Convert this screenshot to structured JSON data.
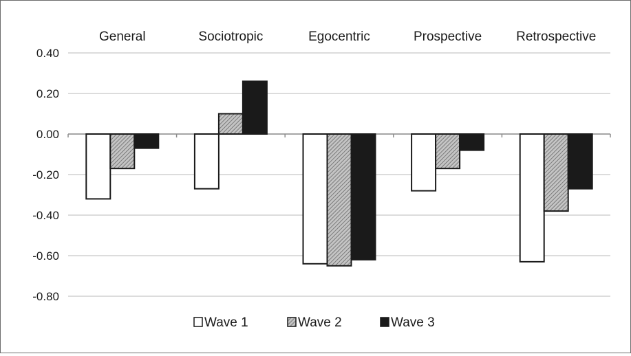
{
  "chart_data": {
    "type": "bar",
    "title": "",
    "xlabel": "",
    "ylabel": "",
    "categories": [
      "General",
      "Sociotropic",
      "Egocentric",
      "Prospective",
      "Retrospective"
    ],
    "series": [
      {
        "name": "Wave 1",
        "values": [
          -0.32,
          -0.27,
          -0.64,
          -0.28,
          -0.63
        ],
        "pattern": "white"
      },
      {
        "name": "Wave 2",
        "values": [
          -0.17,
          0.1,
          -0.65,
          -0.17,
          -0.38
        ],
        "pattern": "hatched-gray"
      },
      {
        "name": "Wave 3",
        "values": [
          -0.07,
          0.26,
          -0.62,
          -0.08,
          -0.27
        ],
        "pattern": "solid-black"
      }
    ],
    "ylim": [
      -0.8,
      0.4
    ],
    "yticks": [
      "0.40",
      "0.20",
      "0.00",
      "-0.20",
      "-0.40",
      "-0.60",
      "-0.80"
    ],
    "ytick_values": [
      0.4,
      0.2,
      0.0,
      -0.2,
      -0.4,
      -0.6,
      -0.8
    ],
    "grid": true,
    "legend_position": "bottom",
    "category_labels_position": "top",
    "colors": {
      "wave1_fill": "#ffffff",
      "wave2_fill": "#a9a9a9",
      "wave3_fill": "#1a1a1a",
      "stroke": "#1a1a1a",
      "grid": "#c8c8c8"
    }
  }
}
